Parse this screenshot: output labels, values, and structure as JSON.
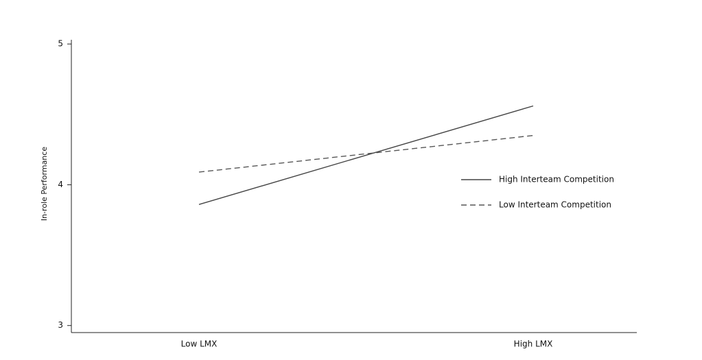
{
  "chart_data": {
    "type": "line",
    "y_label": "In-role Performance",
    "categories": [
      "Low LMX",
      "High LMX"
    ],
    "series": [
      {
        "name": "High Interteam Competition",
        "color": "#444444",
        "line_style": "solid",
        "values": [
          3.86,
          4.56
        ]
      },
      {
        "name": "Low Interteam Competition",
        "color": "#555555",
        "line_style": "dashed",
        "values": [
          4.09,
          4.35
        ]
      }
    ],
    "ylim": [
      2.95,
      5.03
    ],
    "yticks": [
      3,
      4,
      5
    ],
    "grid": false,
    "legend": "right"
  }
}
